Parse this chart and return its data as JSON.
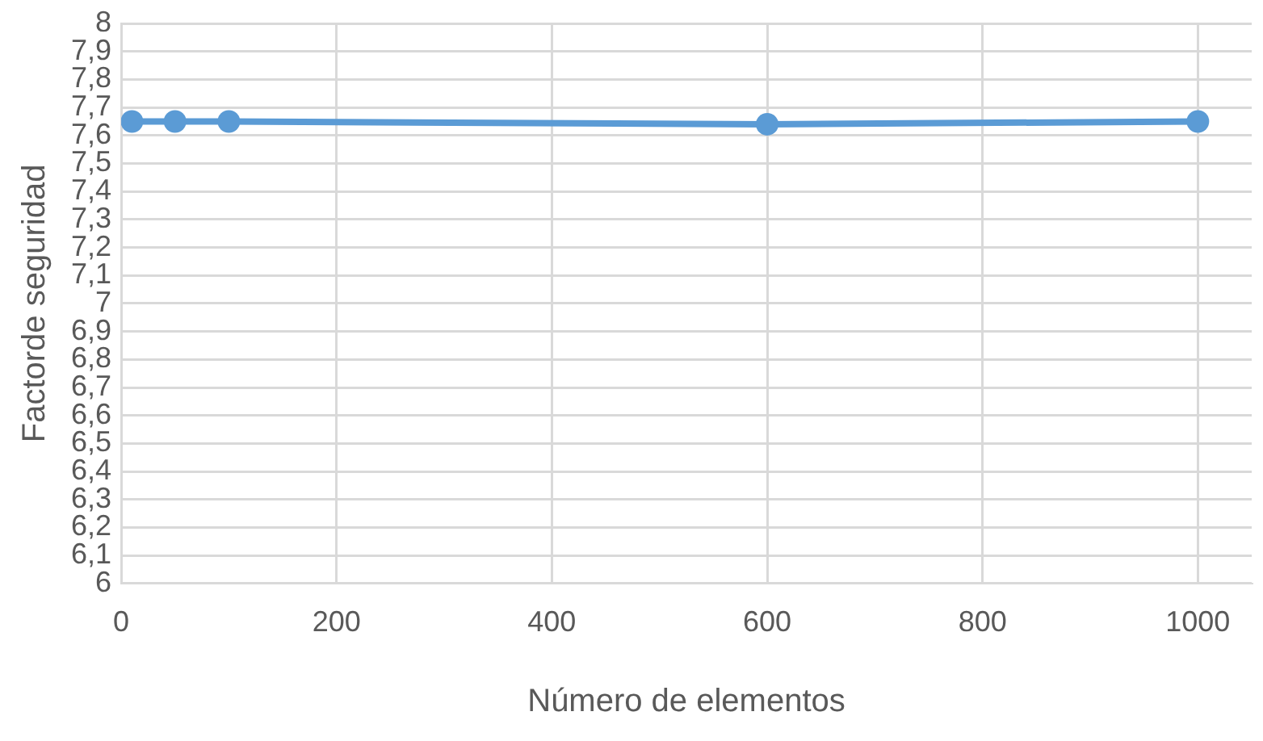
{
  "chart_data": {
    "type": "line",
    "xlabel": "Número de elementos",
    "ylabel": "Factorde seguridad",
    "x": [
      10,
      50,
      100,
      600,
      1000
    ],
    "series": [
      {
        "color": "#5b9bd5",
        "values": [
          7.65,
          7.65,
          7.65,
          7.64,
          7.65
        ]
      }
    ],
    "xlim": [
      0,
      1050
    ],
    "xticks": [
      0,
      200,
      400,
      600,
      800,
      1000
    ],
    "ylim": [
      6,
      8
    ],
    "yticks": [
      6,
      {
        "value": 6.1,
        "label": "6,1"
      },
      {
        "value": 6.2,
        "label": "6,2"
      },
      {
        "value": 6.3,
        "label": "6,3"
      },
      {
        "value": 6.4,
        "label": "6,4"
      },
      {
        "value": 6.5,
        "label": "6,5"
      },
      {
        "value": 6.6,
        "label": "6,6"
      },
      {
        "value": 6.7,
        "label": "6,7"
      },
      {
        "value": 6.8,
        "label": "6,8"
      },
      {
        "value": 6.9,
        "label": "6,9"
      },
      7,
      {
        "value": 7.1,
        "label": "7,1"
      },
      {
        "value": 7.2,
        "label": "7,2"
      },
      {
        "value": 7.3,
        "label": "7,3"
      },
      {
        "value": 7.4,
        "label": "7,4"
      },
      {
        "value": 7.5,
        "label": "7,5"
      },
      {
        "value": 7.6,
        "label": "7,6"
      },
      {
        "value": 7.7,
        "label": "7,7"
      },
      {
        "value": 7.8,
        "label": "7,8"
      },
      {
        "value": 7.9,
        "label": "7,9"
      },
      8
    ],
    "grid": true,
    "legend": false,
    "marker": "circle",
    "line_style": "solid"
  }
}
